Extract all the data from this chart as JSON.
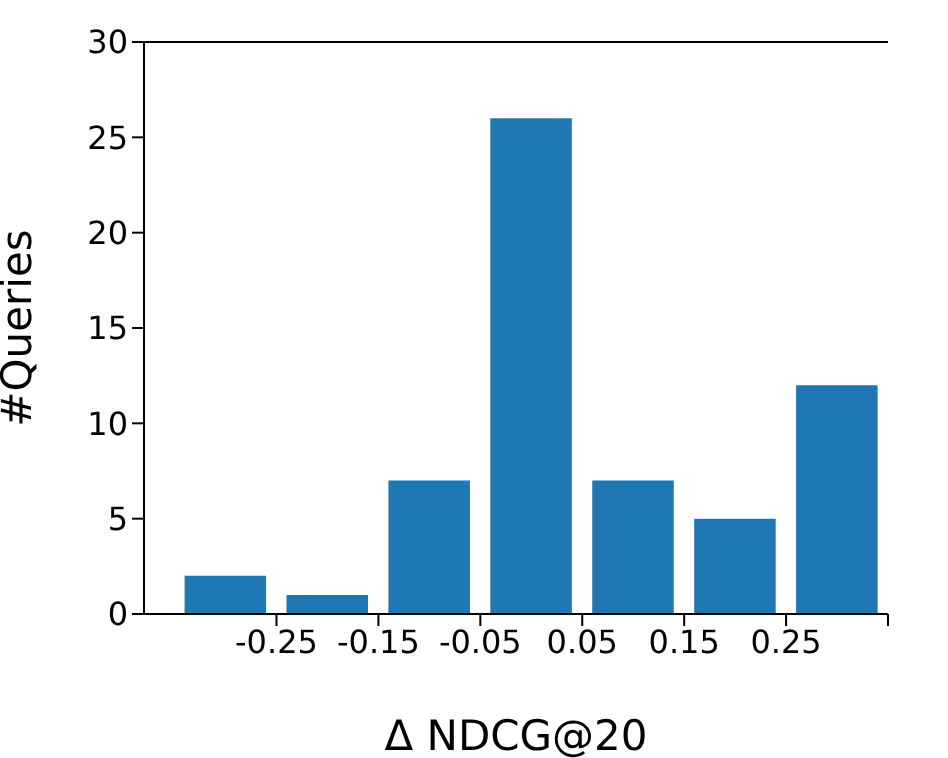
{
  "chart_data": {
    "type": "histogram",
    "xlabel": "Δ NDCG@20",
    "ylabel": "#Queries",
    "bins": [
      -0.35,
      -0.25,
      -0.15,
      -0.05,
      0.05,
      0.15,
      0.25,
      0.35
    ],
    "values": [
      2,
      1,
      7,
      26,
      7,
      5,
      12
    ],
    "color": "#1f77b4",
    "xlim": [
      -0.38,
      0.35
    ],
    "xticks": [
      -0.25,
      -0.15,
      -0.05,
      0.05,
      0.15,
      0.25,
      {
        "value": 0.35,
        "label": null
      }
    ],
    "ylim": [
      0,
      30
    ],
    "yticks": [
      0,
      5,
      10,
      15,
      20,
      25,
      30
    ],
    "grid": false,
    "legend": false
  }
}
